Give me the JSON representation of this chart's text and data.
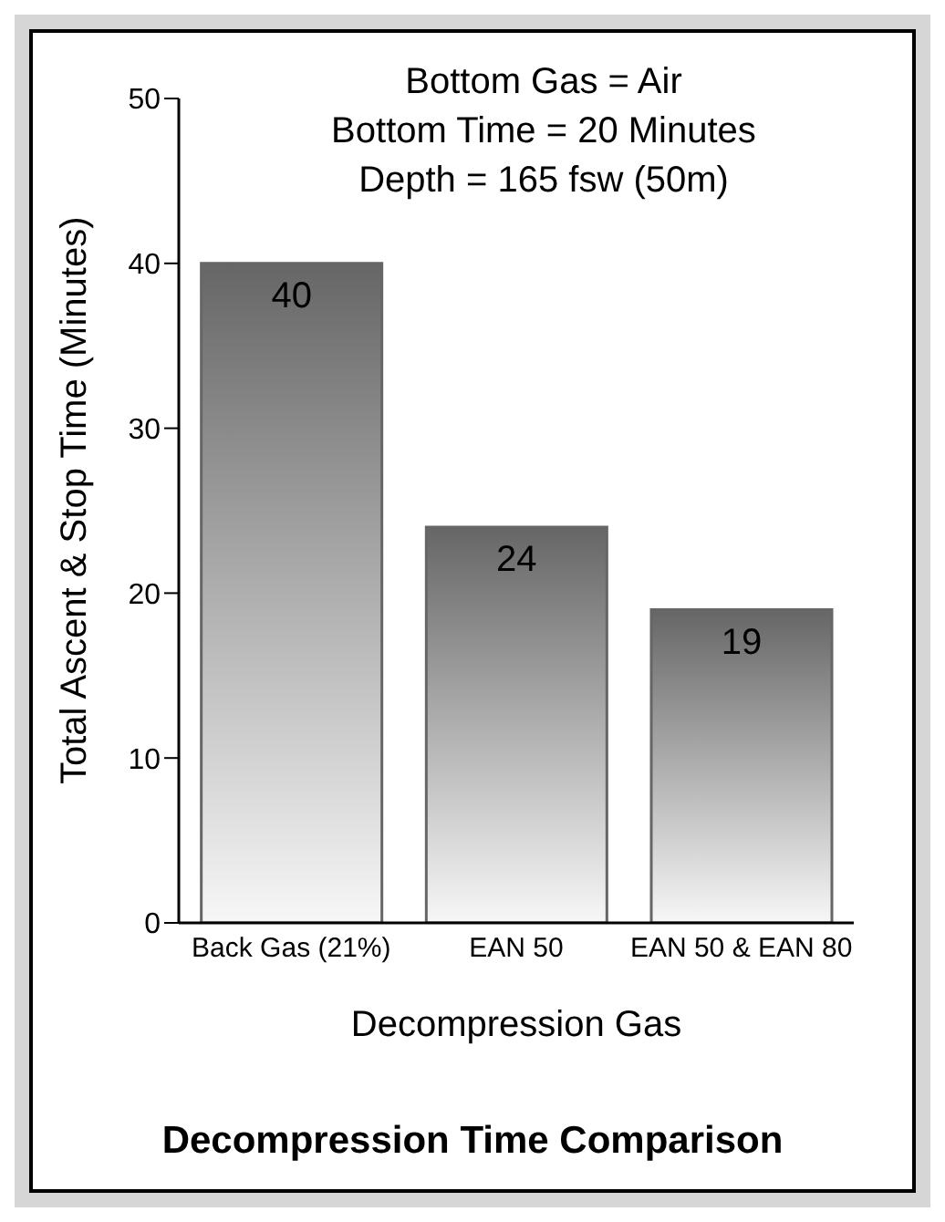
{
  "chart_data": {
    "type": "bar",
    "title": "Decompression Time Comparison",
    "xlabel": "Decompression Gas",
    "ylabel": "Total Ascent & Stop Time (Minutes)",
    "annotations": [
      "Bottom Gas = Air",
      "Bottom Time = 20 Minutes",
      "Depth = 165 fsw (50m)"
    ],
    "categories": [
      "Back Gas (21%)",
      "EAN 50",
      "EAN 50 & EAN 80"
    ],
    "values": [
      40,
      24,
      19
    ],
    "color": "#666666",
    "ylim": [
      0,
      50
    ],
    "yticks": [
      0,
      10,
      20,
      30,
      40,
      50
    ],
    "grid": false,
    "data_labels": true
  }
}
